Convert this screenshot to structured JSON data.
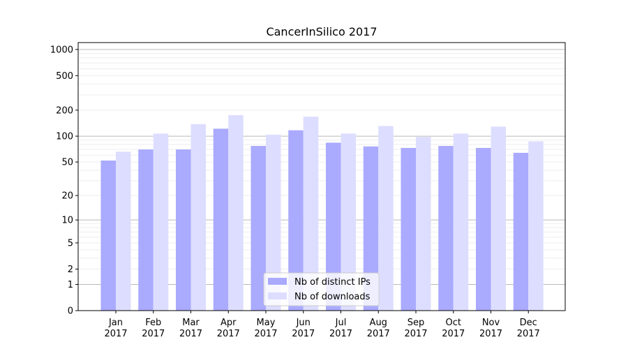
{
  "chart_data": {
    "type": "bar",
    "title": "CancerInSilico 2017",
    "xlabel": "",
    "ylabel": "",
    "yscale": "log(1+y)",
    "ylim": [
      0,
      1200
    ],
    "yticks": [
      0,
      1,
      2,
      5,
      10,
      20,
      50,
      100,
      200,
      500,
      1000
    ],
    "grid": true,
    "legend_position": "lower-center",
    "categories": [
      [
        "Jan",
        "2017"
      ],
      [
        "Feb",
        "2017"
      ],
      [
        "Mar",
        "2017"
      ],
      [
        "Apr",
        "2017"
      ],
      [
        "May",
        "2017"
      ],
      [
        "Jun",
        "2017"
      ],
      [
        "Jul",
        "2017"
      ],
      [
        "Aug",
        "2017"
      ],
      [
        "Sep",
        "2017"
      ],
      [
        "Oct",
        "2017"
      ],
      [
        "Nov",
        "2017"
      ],
      [
        "Dec",
        "2017"
      ]
    ],
    "series": [
      {
        "name": "Nb of distinct IPs",
        "color": "#aaaaff",
        "values": [
          52,
          70,
          70,
          122,
          77,
          117,
          84,
          76,
          73,
          77,
          73,
          64
        ]
      },
      {
        "name": "Nb of downloads",
        "color": "#ddddff",
        "values": [
          66,
          107,
          138,
          175,
          104,
          168,
          107,
          131,
          98,
          107,
          129,
          87
        ]
      }
    ]
  }
}
